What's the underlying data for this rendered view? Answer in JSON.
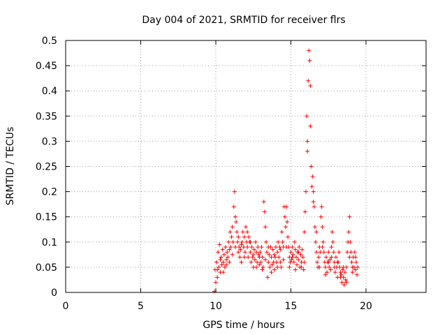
{
  "chart_data": {
    "type": "scatter",
    "title": "Day 004 of 2021, SRMTID for receiver flrs",
    "xlabel": "GPS time / hours",
    "ylabel": "SRMTID / TECUs",
    "xlim": [
      0,
      24
    ],
    "ylim": [
      0,
      0.5
    ],
    "xticks": [
      0,
      5,
      10,
      15,
      20
    ],
    "yticks": [
      0,
      0.05,
      0.1,
      0.15,
      0.2,
      0.25,
      0.3,
      0.35,
      0.4,
      0.45,
      0.5
    ],
    "grid": true,
    "marker": "plus",
    "series": [
      {
        "color": "#ff0000",
        "points": [
          [
            9.9,
            0.002
          ],
          [
            9.95,
            0.045
          ],
          [
            10.0,
            0.02
          ],
          [
            10.05,
            0.06
          ],
          [
            10.1,
            0.03
          ],
          [
            10.15,
            0.08
          ],
          [
            10.2,
            0.05
          ],
          [
            10.25,
            0.095
          ],
          [
            10.3,
            0.04
          ],
          [
            10.35,
            0.07
          ],
          [
            10.4,
            0.055
          ],
          [
            10.45,
            0.085
          ],
          [
            10.5,
            0.06
          ],
          [
            10.55,
            0.075
          ],
          [
            10.6,
            0.05
          ],
          [
            10.65,
            0.09
          ],
          [
            10.7,
            0.065
          ],
          [
            10.75,
            0.08
          ],
          [
            10.8,
            0.07
          ],
          [
            10.85,
            0.1
          ],
          [
            10.9,
            0.085
          ],
          [
            10.95,
            0.12
          ],
          [
            11.0,
            0.09
          ],
          [
            11.05,
            0.11
          ],
          [
            11.1,
            0.13
          ],
          [
            11.15,
            0.1
          ],
          [
            11.2,
            0.17
          ],
          [
            11.25,
            0.2
          ],
          [
            11.3,
            0.15
          ],
          [
            11.35,
            0.14
          ],
          [
            11.4,
            0.12
          ],
          [
            11.45,
            0.1
          ],
          [
            11.5,
            0.08
          ],
          [
            11.55,
            0.09
          ],
          [
            11.6,
            0.07
          ],
          [
            11.65,
            0.085
          ],
          [
            11.7,
            0.06
          ],
          [
            11.75,
            0.1
          ],
          [
            11.8,
            0.12
          ],
          [
            11.85,
            0.09
          ],
          [
            11.9,
            0.11
          ],
          [
            11.95,
            0.08
          ],
          [
            12.0,
            0.13
          ],
          [
            12.05,
            0.1
          ],
          [
            12.1,
            0.09
          ],
          [
            12.15,
            0.07
          ],
          [
            12.2,
            0.11
          ],
          [
            12.25,
            0.1
          ],
          [
            12.3,
            0.08
          ],
          [
            12.35,
            0.06
          ],
          [
            12.4,
            0.09
          ],
          [
            12.45,
            0.07
          ],
          [
            12.5,
            0.05
          ],
          [
            12.55,
            0.085
          ],
          [
            12.6,
            0.065
          ],
          [
            12.65,
            0.1
          ],
          [
            12.7,
            0.08
          ],
          [
            12.75,
            0.06
          ],
          [
            12.8,
            0.09
          ],
          [
            12.85,
            0.075
          ],
          [
            12.9,
            0.055
          ],
          [
            12.95,
            0.08
          ],
          [
            13.0,
            0.06
          ],
          [
            13.05,
            0.09
          ],
          [
            13.1,
            0.07
          ],
          [
            13.15,
            0.05
          ],
          [
            13.2,
            0.18
          ],
          [
            13.25,
            0.16
          ],
          [
            13.3,
            0.13
          ],
          [
            13.35,
            0.1
          ],
          [
            13.4,
            0.08
          ],
          [
            13.45,
            0.03
          ],
          [
            13.5,
            0.06
          ],
          [
            13.55,
            0.075
          ],
          [
            13.6,
            0.05
          ],
          [
            13.65,
            0.09
          ],
          [
            13.7,
            0.07
          ],
          [
            13.75,
            0.055
          ],
          [
            13.8,
            0.085
          ],
          [
            13.85,
            0.06
          ],
          [
            13.9,
            0.045
          ],
          [
            13.95,
            0.07
          ],
          [
            14.0,
            0.09
          ],
          [
            14.05,
            0.06
          ],
          [
            14.1,
            0.08
          ],
          [
            14.15,
            0.1
          ],
          [
            14.2,
            0.07
          ],
          [
            14.25,
            0.09
          ],
          [
            14.3,
            0.06
          ],
          [
            14.35,
            0.05
          ],
          [
            14.4,
            0.12
          ],
          [
            14.45,
            0.1
          ],
          [
            14.5,
            0.09
          ],
          [
            14.55,
            0.17
          ],
          [
            14.6,
            0.15
          ],
          [
            14.65,
            0.13
          ],
          [
            14.7,
            0.17
          ],
          [
            14.75,
            0.14
          ],
          [
            14.8,
            0.11
          ],
          [
            14.85,
            0.09
          ],
          [
            14.9,
            0.07
          ],
          [
            14.95,
            0.06
          ],
          [
            15.0,
            0.08
          ],
          [
            15.05,
            0.065
          ],
          [
            15.1,
            0.09
          ],
          [
            15.15,
            0.075
          ],
          [
            15.2,
            0.06
          ],
          [
            15.25,
            0.1
          ],
          [
            15.3,
            0.085
          ],
          [
            15.35,
            0.07
          ],
          [
            15.4,
            0.055
          ],
          [
            15.45,
            0.08
          ],
          [
            15.5,
            0.065
          ],
          [
            15.55,
            0.09
          ],
          [
            15.6,
            0.05
          ],
          [
            15.65,
            0.075
          ],
          [
            15.7,
            0.06
          ],
          [
            15.75,
            0.085
          ],
          [
            15.8,
            0.07
          ],
          [
            15.85,
            0.045
          ],
          [
            15.9,
            0.12
          ],
          [
            15.95,
            0.16
          ],
          [
            16.0,
            0.2
          ],
          [
            16.05,
            0.35
          ],
          [
            16.1,
            0.3
          ],
          [
            16.15,
            0.42
          ],
          [
            16.2,
            0.48
          ],
          [
            16.25,
            0.46
          ],
          [
            16.3,
            0.41
          ],
          [
            16.35,
            0.25
          ],
          [
            16.4,
            0.21
          ],
          [
            16.45,
            0.23
          ],
          [
            16.5,
            0.18
          ],
          [
            16.55,
            0.17
          ],
          [
            16.6,
            0.13
          ],
          [
            16.65,
            0.1
          ],
          [
            16.7,
            0.08
          ],
          [
            16.75,
            0.06
          ],
          [
            16.8,
            0.05
          ],
          [
            16.85,
            0.07
          ],
          [
            16.9,
            0.09
          ],
          [
            16.95,
            0.08
          ],
          [
            17.0,
            0.15
          ],
          [
            17.05,
            0.17
          ],
          [
            17.1,
            0.13
          ],
          [
            17.15,
            0.1
          ],
          [
            17.2,
            0.08
          ],
          [
            17.25,
            0.06
          ],
          [
            17.3,
            0.05
          ],
          [
            17.35,
            0.07
          ],
          [
            17.4,
            0.04
          ],
          [
            17.45,
            0.06
          ],
          [
            17.5,
            0.08
          ],
          [
            17.55,
            0.05
          ],
          [
            17.6,
            0.065
          ],
          [
            17.65,
            0.045
          ],
          [
            17.7,
            0.07
          ],
          [
            17.75,
            0.12
          ],
          [
            17.8,
            0.1
          ],
          [
            17.85,
            0.08
          ],
          [
            17.9,
            0.06
          ],
          [
            17.95,
            0.04
          ],
          [
            18.0,
            0.07
          ],
          [
            18.05,
            0.05
          ],
          [
            18.1,
            0.03
          ],
          [
            18.15,
            0.06
          ],
          [
            18.2,
            0.08
          ],
          [
            18.25,
            0.05
          ],
          [
            18.3,
            0.04
          ],
          [
            18.35,
            0.035
          ],
          [
            18.4,
            0.02
          ],
          [
            18.45,
            0.045
          ],
          [
            18.5,
            0.03
          ],
          [
            18.55,
            0.015
          ],
          [
            18.6,
            0.04
          ],
          [
            18.65,
            0.025
          ],
          [
            18.7,
            0.05
          ],
          [
            18.75,
            0.08
          ],
          [
            18.8,
            0.1
          ],
          [
            18.85,
            0.12
          ],
          [
            18.9,
            0.15
          ],
          [
            18.95,
            0.1
          ],
          [
            19.0,
            0.08
          ],
          [
            19.05,
            0.06
          ],
          [
            19.1,
            0.04
          ],
          [
            19.15,
            0.07
          ],
          [
            19.2,
            0.05
          ],
          [
            19.25,
            0.08
          ],
          [
            19.3,
            0.045
          ],
          [
            19.35,
            0.06
          ],
          [
            19.4,
            0.035
          ],
          [
            19.45,
            0.05
          ],
          [
            10.1,
            0.045
          ],
          [
            10.3,
            0.065
          ],
          [
            10.5,
            0.04
          ],
          [
            10.7,
            0.055
          ],
          [
            10.9,
            0.06
          ],
          [
            11.1,
            0.075
          ],
          [
            11.3,
            0.09
          ],
          [
            11.5,
            0.11
          ],
          [
            11.7,
            0.095
          ],
          [
            11.9,
            0.07
          ],
          [
            12.1,
            0.12
          ],
          [
            12.3,
            0.1
          ],
          [
            12.5,
            0.075
          ],
          [
            12.7,
            0.05
          ],
          [
            12.9,
            0.07
          ],
          [
            13.1,
            0.045
          ],
          [
            13.3,
            0.065
          ],
          [
            13.5,
            0.09
          ],
          [
            13.7,
            0.04
          ],
          [
            13.9,
            0.075
          ],
          [
            14.1,
            0.05
          ],
          [
            14.3,
            0.085
          ],
          [
            14.5,
            0.065
          ],
          [
            14.7,
            0.09
          ],
          [
            14.9,
            0.05
          ],
          [
            15.1,
            0.07
          ],
          [
            15.3,
            0.045
          ],
          [
            15.5,
            0.08
          ],
          [
            15.7,
            0.05
          ],
          [
            15.9,
            0.06
          ],
          [
            16.1,
            0.28
          ],
          [
            16.3,
            0.33
          ],
          [
            16.5,
            0.2
          ],
          [
            16.7,
            0.12
          ],
          [
            16.9,
            0.05
          ],
          [
            17.1,
            0.09
          ],
          [
            17.3,
            0.035
          ],
          [
            17.5,
            0.06
          ],
          [
            17.7,
            0.09
          ],
          [
            17.9,
            0.05
          ],
          [
            18.1,
            0.06
          ],
          [
            18.3,
            0.03
          ],
          [
            18.5,
            0.05
          ],
          [
            18.7,
            0.02
          ],
          [
            18.9,
            0.07
          ],
          [
            19.1,
            0.05
          ],
          [
            19.3,
            0.07
          ]
        ]
      }
    ]
  }
}
